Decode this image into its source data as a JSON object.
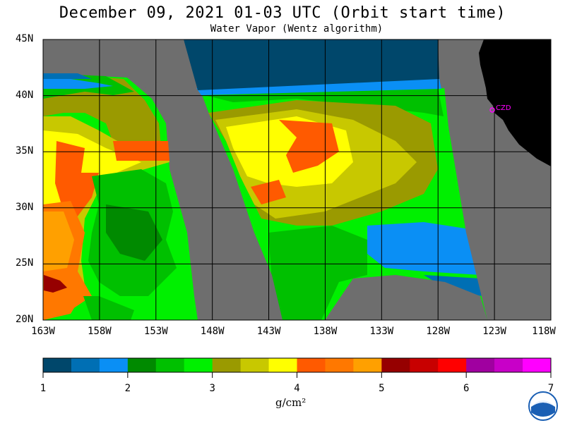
{
  "title": "December 09, 2021  01-03 UTC  (Orbit start time)",
  "subtitle": "Water Vapor (Wentz algorithm)",
  "lat_labels": [
    "45N",
    "40N",
    "35N",
    "30N",
    "25N",
    "20N"
  ],
  "lon_labels": [
    "163W",
    "158W",
    "153W",
    "148W",
    "143W",
    "138W",
    "133W",
    "128W",
    "123W",
    "118W"
  ],
  "station_label": "CZD",
  "colorbar": {
    "ticks": [
      "1",
      "2",
      "3",
      "4",
      "5",
      "6",
      "7"
    ],
    "units": "g/cm²",
    "colors": [
      "#00476b",
      "#006fb4",
      "#0a8ff5",
      "#008a00",
      "#00c000",
      "#00f000",
      "#9a9a00",
      "#c8c800",
      "#ffff00",
      "#ff5a00",
      "#ff7800",
      "#ffa000",
      "#960000",
      "#c80000",
      "#ff0000",
      "#a000a0",
      "#c800c8",
      "#ff00ff"
    ]
  },
  "logo_text": "NOAA",
  "colors": {
    "no_data": "#6e6e6e",
    "land": "#000000",
    "station": "#ff00ff"
  }
}
